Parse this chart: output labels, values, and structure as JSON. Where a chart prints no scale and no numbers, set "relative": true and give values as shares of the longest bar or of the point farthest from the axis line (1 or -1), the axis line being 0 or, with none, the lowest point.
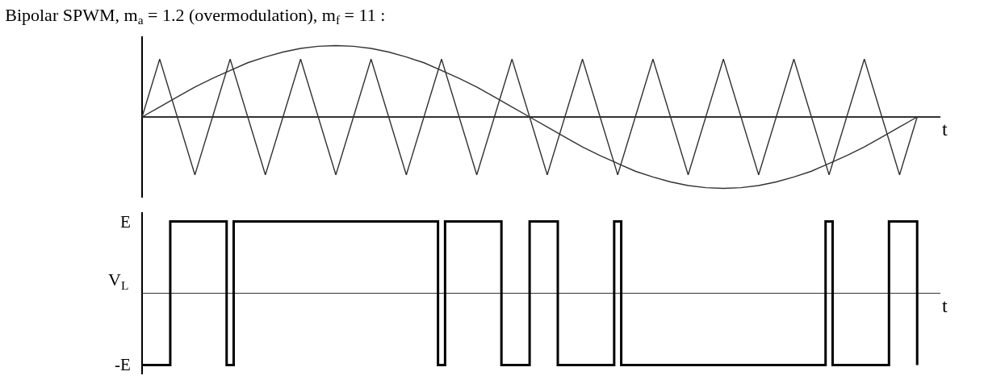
{
  "chart_data": [
    {
      "type": "line",
      "title": "Bipolar SPWM, m$_{a}$ = 1.2 (overmodulation), m$_{f}$ = 11 :",
      "xlabel": "t",
      "relative": true,
      "tick_labels": false,
      "categories": [
        null,
        null,
        null,
        null,
        null,
        null,
        null,
        null,
        null,
        null,
        null,
        null,
        null,
        null,
        null,
        null,
        null,
        null,
        null,
        null,
        null,
        null,
        null,
        null,
        null,
        null,
        null,
        null,
        null,
        null,
        null,
        null,
        null,
        null,
        null,
        null,
        null,
        null,
        null,
        null,
        null,
        null,
        null,
        null,
        null
      ],
      "series": [
        {
          "color": "#333333",
          "values": [
            0,
            0.14,
            0.28,
            0.42,
            0.54,
            0.65,
            0.76,
            0.84,
            0.91,
            0.96,
            0.99,
            1,
            0.99,
            0.96,
            0.91,
            0.84,
            0.76,
            0.65,
            0.54,
            0.42,
            0.28,
            0.14,
            0,
            -0.14,
            -0.28,
            -0.42,
            -0.54,
            -0.65,
            -0.76,
            -0.84,
            -0.91,
            -0.96,
            -0.99,
            -1,
            -0.99,
            -0.96,
            -0.91,
            -0.84,
            -0.76,
            -0.65,
            -0.54,
            -0.42,
            -0.28,
            -0.14,
            0
          ]
        },
        {
          "color": "#333333",
          "values": [
            0,
            0.81,
            0,
            -0.81,
            0,
            0.81,
            0,
            -0.81,
            0,
            0.81,
            0,
            -0.81,
            0,
            0.81,
            0,
            -0.81,
            0,
            0.81,
            0,
            -0.81,
            0,
            0.81,
            0,
            -0.81,
            0,
            0.81,
            0,
            -0.81,
            0,
            0.81,
            0,
            -0.81,
            0,
            0.81,
            0,
            -0.81,
            0,
            0.81,
            0,
            -0.81,
            0,
            0.81,
            0,
            -0.81,
            0
          ]
        }
      ]
    },
    {
      "type": "step",
      "xlabel": "t",
      "ylabel": "V$_{L}$",
      "relative": true,
      "tick_labels": false,
      "annotations": [
        "E",
        "-E"
      ],
      "categories": [
        null,
        null,
        null,
        null,
        null,
        null,
        null,
        null,
        null,
        null,
        null,
        null,
        null,
        null,
        null,
        null,
        null,
        null,
        null,
        null,
        null,
        null,
        null,
        null,
        null,
        null,
        null,
        null,
        null,
        null,
        null,
        null,
        null,
        null,
        null,
        null,
        null,
        null,
        null,
        null,
        null,
        null,
        null,
        null,
        null,
        null,
        null,
        null,
        null,
        null,
        null,
        null,
        null,
        null,
        null,
        null,
        null,
        null,
        null,
        null,
        null,
        null,
        null,
        null,
        null,
        null,
        null,
        null,
        null,
        null,
        null,
        null,
        null,
        null,
        null,
        null,
        null,
        null,
        null,
        null,
        null,
        null,
        null,
        null,
        null,
        null,
        null,
        null,
        null,
        null,
        null,
        null,
        null,
        null,
        null,
        null,
        null,
        null,
        null,
        null,
        null,
        null,
        null,
        null,
        null,
        null,
        null,
        null,
        null,
        null,
        null
      ],
      "series": [
        {
          "color": "#000000",
          "values": [
            -1,
            -1,
            -1,
            -1,
            1,
            1,
            1,
            1,
            1,
            1,
            1,
            1,
            -1,
            1,
            1,
            1,
            1,
            1,
            1,
            1,
            1,
            1,
            1,
            1,
            1,
            1,
            1,
            1,
            1,
            1,
            1,
            1,
            1,
            1,
            1,
            1,
            1,
            1,
            1,
            1,
            1,
            1,
            -1,
            1,
            1,
            1,
            1,
            1,
            1,
            1,
            1,
            -1,
            -1,
            -1,
            -1,
            1,
            1,
            1,
            1,
            -1,
            -1,
            -1,
            -1,
            -1,
            -1,
            -1,
            -1,
            1,
            -1,
            -1,
            -1,
            -1,
            -1,
            -1,
            -1,
            -1,
            -1,
            -1,
            -1,
            -1,
            -1,
            -1,
            -1,
            -1,
            -1,
            -1,
            -1,
            -1,
            -1,
            -1,
            -1,
            -1,
            -1,
            -1,
            -1,
            -1,
            -1,
            1,
            -1,
            -1,
            -1,
            -1,
            -1,
            -1,
            -1,
            -1,
            1,
            1,
            1,
            1,
            -1
          ]
        }
      ]
    }
  ]
}
